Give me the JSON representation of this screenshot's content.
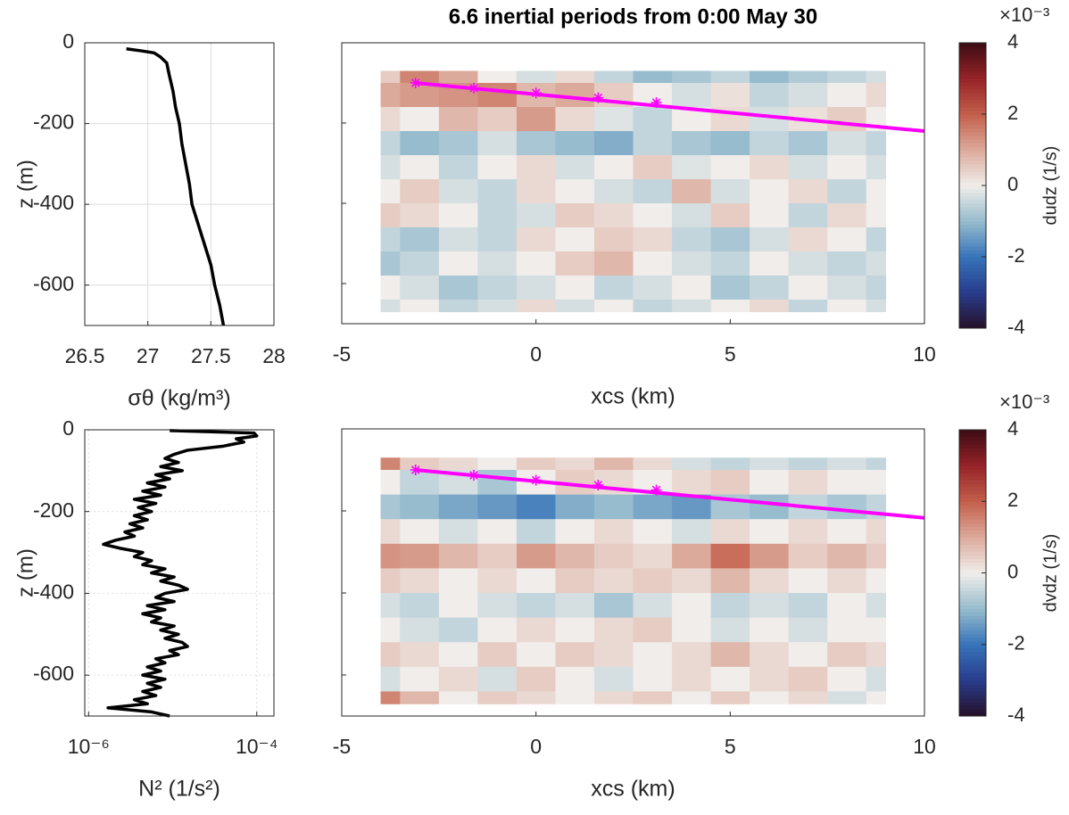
{
  "chart_data": [
    {
      "type": "line",
      "xlabel": "σθ (kg/m³)",
      "ylabel": "z (m)",
      "color": "#000000",
      "x": [
        26.83,
        26.95,
        27.05,
        27.1,
        27.15,
        27.17,
        27.2,
        27.22,
        27.25,
        27.27,
        27.3,
        27.33,
        27.35,
        27.4,
        27.45,
        27.5,
        27.53,
        27.57,
        27.6
      ],
      "values": [
        -15,
        -20,
        -25,
        -35,
        -50,
        -80,
        -120,
        -160,
        -200,
        -250,
        -300,
        -350,
        -400,
        -450,
        -500,
        -550,
        -600,
        -650,
        -700
      ],
      "xlim": [
        26.5,
        28
      ],
      "xticks": [
        26.5,
        27,
        27.5,
        28
      ],
      "ylim": [
        -700,
        0
      ],
      "yticks": [
        -600,
        -400,
        -200,
        0
      ],
      "grid": true
    },
    {
      "type": "contour",
      "title": "6.6 inertial periods from 0:00 May 30",
      "xlabel": "xcs (km)",
      "clabel": "dudz (1/s)",
      "cscale_label": "×10⁻³",
      "x": [
        -4,
        -3,
        -2,
        -1,
        0,
        1,
        2,
        3,
        4,
        5,
        6,
        7,
        8,
        9
      ],
      "z": [
        -70,
        -130,
        -190,
        -250,
        -310,
        -370,
        -430,
        -490,
        -550,
        -610,
        -670
      ],
      "values": [
        [
          0.5,
          1.5,
          1,
          0,
          -0.3,
          0.3,
          -0.5,
          -1,
          -0.8,
          -0.5,
          -1,
          -0.7,
          -0.5,
          -0.3
        ],
        [
          1,
          1.2,
          1.3,
          1.5,
          0.8,
          1,
          0.5,
          0,
          -0.3,
          0.2,
          -0.5,
          -0.3,
          0,
          0.3
        ],
        [
          0.3,
          0,
          0.8,
          0.5,
          1.2,
          0.3,
          -0.2,
          -0.5,
          0,
          0.3,
          -0.3,
          0.2,
          0.5,
          0
        ],
        [
          -0.5,
          -1,
          -0.8,
          -0.3,
          -0.8,
          -1,
          -1.2,
          -0.5,
          -0.8,
          -1,
          -0.5,
          -0.8,
          -0.3,
          -0.5
        ],
        [
          -0.3,
          0,
          -0.5,
          0,
          0.3,
          -0.3,
          0,
          0.5,
          -0.2,
          0,
          0.3,
          -0.3,
          0,
          -0.3
        ],
        [
          0,
          0.5,
          -0.3,
          -0.5,
          0.3,
          0,
          -0.3,
          -0.5,
          0.8,
          -0.3,
          0,
          0.3,
          -0.5,
          0
        ],
        [
          0.5,
          0.3,
          0,
          -0.5,
          -0.3,
          0.5,
          0.3,
          0,
          -0.3,
          0.5,
          0,
          -0.5,
          0.3,
          0
        ],
        [
          -0.5,
          -0.8,
          -0.3,
          -0.5,
          0.3,
          0,
          0.5,
          0.3,
          -0.5,
          -0.8,
          -0.3,
          0.3,
          0,
          -0.5
        ],
        [
          -0.8,
          -0.5,
          0,
          -0.3,
          0,
          0.5,
          0.8,
          0,
          -0.3,
          -0.5,
          0,
          -0.3,
          -0.5,
          -0.3
        ],
        [
          0,
          -0.3,
          -0.8,
          -0.5,
          -0.3,
          0,
          -0.5,
          -0.3,
          0,
          -0.8,
          -0.5,
          0,
          -0.3,
          -0.5
        ],
        [
          -0.3,
          0,
          -0.5,
          -0.3,
          0.3,
          -0.3,
          0,
          -0.5,
          -0.3,
          0,
          0.3,
          -0.5,
          0,
          -0.3
        ]
      ],
      "track": {
        "color": "#ff00ff",
        "x": [
          -3.1,
          10
        ],
        "values": [
          -100,
          -220
        ]
      },
      "markers": {
        "x": [
          -3.1,
          -1.6,
          0,
          1.6,
          3.1
        ],
        "values": [
          -100,
          -113,
          -125,
          -137,
          -149
        ]
      },
      "xlim": [
        -5,
        10
      ],
      "xticks": [
        -5,
        0,
        5,
        10
      ],
      "ylim": [
        -700,
        0
      ],
      "yticks": [
        -600,
        -400,
        -200,
        0
      ],
      "clim": [
        -4,
        4
      ],
      "cticks": [
        -4,
        -2,
        0,
        2,
        4
      ]
    },
    {
      "type": "line",
      "xlabel": "N² (1/s²)",
      "ylabel": "z (m)",
      "color": "#000000",
      "log_x": true,
      "x": [
        9.2e-06,
        9.3e-05,
        0.0001,
        5.7e-05,
        7e-05,
        4e-05,
        1.5e-05,
        1.04e-05,
        8.1e-06,
        1.17e-05,
        7.2e-06,
        1.3e-05,
        6.3e-06,
        9.2e-06,
        5e-06,
        8.1e-06,
        4.4e-06,
        7.2e-06,
        3.5e-06,
        6.3e-06,
        3.9e-06,
        5.6e-06,
        3.5e-06,
        5e-06,
        3.1e-06,
        4.4e-06,
        2.7e-06,
        3.5e-06,
        2.1e-06,
        1.5e-06,
        2.4e-06,
        4.4e-06,
        3.5e-06,
        5.6e-06,
        4.4e-06,
        8.1e-06,
        5.6e-06,
        1.04e-05,
        7.2e-06,
        1.17e-05,
        1.5e-05,
        8.1e-06,
        6.3e-06,
        1.04e-05,
        5e-06,
        8.1e-06,
        4.4e-06,
        7.2e-06,
        5.6e-06,
        1.04e-05,
        7.2e-06,
        1.17e-05,
        8.1e-06,
        1.3e-05,
        1.5e-05,
        9.2e-06,
        1.17e-05,
        6.3e-06,
        8.1e-06,
        5e-06,
        7.2e-06,
        4.4e-06,
        8.1e-06,
        5e-06,
        7.2e-06,
        4.4e-06,
        6.3e-06,
        3.5e-06,
        5e-06,
        1.7e-06,
        5.6e-06,
        9.2e-06
      ],
      "values": [
        -2,
        -8,
        -15,
        -22,
        -30,
        -40,
        -50,
        -60,
        -70,
        -80,
        -90,
        -100,
        -110,
        -120,
        -130,
        -140,
        -150,
        -160,
        -170,
        -180,
        -190,
        -200,
        -210,
        -220,
        -230,
        -240,
        -250,
        -260,
        -270,
        -280,
        -290,
        -300,
        -310,
        -320,
        -330,
        -340,
        -350,
        -360,
        -370,
        -380,
        -390,
        -400,
        -410,
        -420,
        -430,
        -440,
        -450,
        -460,
        -470,
        -480,
        -490,
        -500,
        -510,
        -520,
        -530,
        -540,
        -550,
        -560,
        -570,
        -580,
        -590,
        -600,
        -610,
        -620,
        -630,
        -640,
        -650,
        -660,
        -670,
        -680,
        -690,
        -700
      ],
      "xlim": [
        9e-07,
        0.00016
      ],
      "xticks": [
        {
          "value": 1e-06,
          "label": "10⁻⁶"
        },
        {
          "value": 0.0001,
          "label": "10⁻⁴"
        }
      ],
      "ylim": [
        -700,
        0
      ],
      "yticks": [
        -600,
        -400,
        -200,
        0
      ],
      "grid": true
    },
    {
      "type": "contour",
      "xlabel": "xcs (km)",
      "clabel": "dvdz (1/s)",
      "cscale_label": "×10⁻³",
      "x": [
        -4,
        -3,
        -2,
        -1,
        0,
        1,
        2,
        3,
        4,
        5,
        6,
        7,
        8,
        9
      ],
      "z": [
        -70,
        -130,
        -190,
        -250,
        -310,
        -370,
        -430,
        -490,
        -550,
        -610,
        -670
      ],
      "values": [
        [
          1.5,
          0.5,
          0.3,
          0,
          0.5,
          0.3,
          0.8,
          0.3,
          -0.3,
          -0.5,
          -0.3,
          -0.5,
          -0.3,
          -0.5
        ],
        [
          0,
          -0.5,
          -0.3,
          -0.8,
          0,
          0.5,
          0.3,
          0,
          0.3,
          0.5,
          0,
          0.3,
          0,
          0
        ],
        [
          -0.8,
          -1,
          -1.3,
          -1.5,
          -1.8,
          -1.2,
          -1,
          -1.3,
          -1.5,
          -0.8,
          -1,
          -0.5,
          -0.8,
          -0.5
        ],
        [
          0.3,
          0,
          -0.3,
          0,
          -0.5,
          0,
          0.3,
          0,
          -0.3,
          0.3,
          0,
          0.3,
          0,
          0.3
        ],
        [
          1.3,
          1.2,
          0.8,
          0.5,
          1.2,
          0.8,
          0.5,
          0.3,
          1,
          1.8,
          1.2,
          0.5,
          0.8,
          0.5
        ],
        [
          0.5,
          0.3,
          0,
          0.3,
          0,
          0.5,
          0.3,
          0.5,
          0.3,
          0.8,
          0.3,
          0,
          0.3,
          0
        ],
        [
          -0.3,
          -0.5,
          0,
          -0.3,
          -0.5,
          -0.3,
          -0.8,
          -0.3,
          0,
          -0.5,
          -0.3,
          -0.5,
          0,
          -0.3
        ],
        [
          0,
          -0.3,
          -0.5,
          0,
          0.3,
          0,
          0.3,
          0.5,
          0,
          -0.3,
          0,
          -0.3,
          0,
          0
        ],
        [
          0.5,
          0.3,
          0,
          0.5,
          0,
          0.5,
          0.3,
          0,
          0.3,
          0.8,
          0.3,
          0,
          0.5,
          0.3
        ],
        [
          -0.3,
          0,
          0.3,
          -0.3,
          0.5,
          0,
          -0.3,
          0,
          0.3,
          0,
          0.3,
          0.5,
          0,
          -0.3
        ],
        [
          1.5,
          0.8,
          0,
          0.5,
          0.3,
          0,
          0.3,
          0.5,
          0,
          0.5,
          0,
          0.3,
          -0.3,
          0
        ]
      ],
      "track": {
        "color": "#ff00ff",
        "x": [
          -3.1,
          10
        ],
        "values": [
          -100,
          -217
        ]
      },
      "markers": {
        "x": [
          -3.1,
          -1.6,
          0,
          1.6,
          3.1
        ],
        "values": [
          -100,
          -113,
          -125,
          -137,
          -149
        ]
      },
      "xlim": [
        -5,
        10
      ],
      "xticks": [
        -5,
        0,
        5,
        10
      ],
      "ylim": [
        -700,
        0
      ],
      "yticks": [
        -600,
        -400,
        -200,
        0
      ],
      "clim": [
        -4,
        4
      ],
      "cticks": [
        -4,
        -2,
        0,
        2,
        4
      ]
    }
  ]
}
